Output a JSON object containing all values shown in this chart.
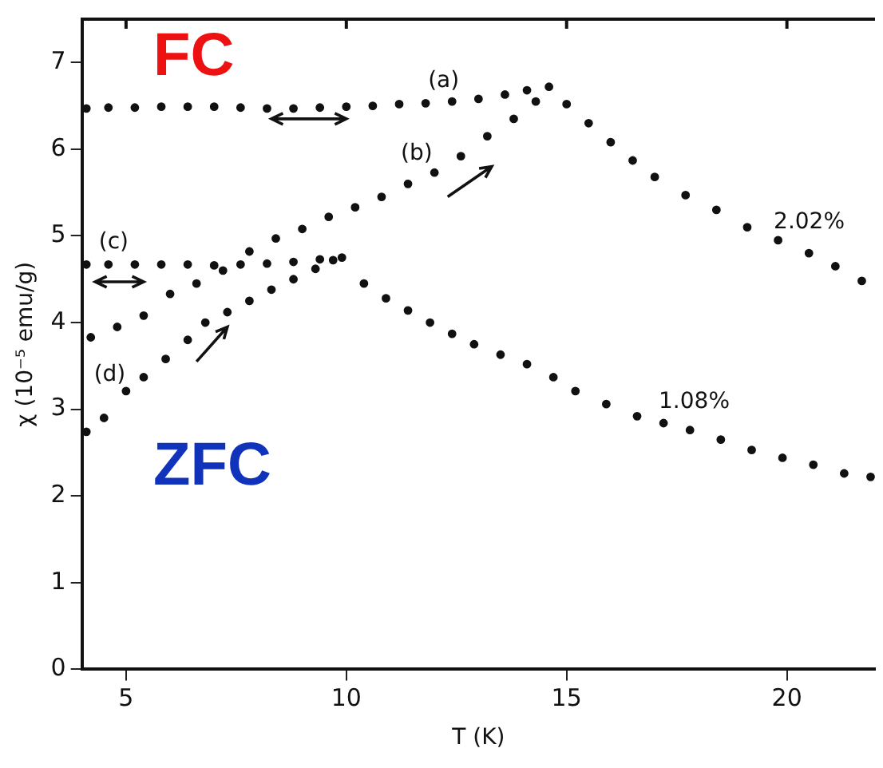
{
  "chart_data": {
    "type": "scatter",
    "xlabel": "T (K)",
    "ylabel": "χ (10⁻⁵ emu/g)",
    "xlim": [
      4,
      22
    ],
    "ylim": [
      0,
      7.5
    ],
    "xticks": [
      5,
      10,
      15,
      20
    ],
    "yticks": [
      0,
      1,
      2,
      3,
      4,
      5,
      6,
      7
    ],
    "grid": false,
    "legend": false,
    "marker": "circle",
    "series": [
      {
        "color": "#111111",
        "x": [
          4.1,
          4.6,
          5.2,
          5.8,
          6.4,
          7.0,
          7.6,
          8.2,
          8.8,
          9.4,
          10.0,
          10.6,
          11.2,
          11.8,
          12.4,
          13.0,
          13.6,
          14.1,
          14.6,
          15.0,
          15.5,
          16.0,
          16.5,
          17.0,
          17.7,
          18.4,
          19.1,
          19.8,
          20.5,
          21.1,
          21.7
        ],
        "values": [
          6.47,
          6.48,
          6.48,
          6.49,
          6.49,
          6.49,
          6.48,
          6.47,
          6.47,
          6.48,
          6.49,
          6.5,
          6.52,
          6.53,
          6.55,
          6.58,
          6.63,
          6.68,
          6.72,
          6.52,
          6.3,
          6.08,
          5.87,
          5.68,
          5.47,
          5.3,
          5.1,
          4.95,
          4.8,
          4.65,
          4.48
        ]
      },
      {
        "color": "#111111",
        "x": [
          4.2,
          4.8,
          5.4,
          6.0,
          6.6,
          7.2,
          7.8,
          8.4,
          9.0,
          9.6,
          10.2,
          10.8,
          11.4,
          12.0,
          12.6,
          13.2,
          13.8,
          14.3
        ],
        "values": [
          3.83,
          3.95,
          4.08,
          4.33,
          4.45,
          4.6,
          4.82,
          4.97,
          5.08,
          5.22,
          5.33,
          5.45,
          5.6,
          5.73,
          5.92,
          6.15,
          6.35,
          6.55
        ]
      },
      {
        "color": "#111111",
        "x": [
          4.1,
          4.6,
          5.2,
          5.8,
          6.4,
          7.0,
          7.6,
          8.2,
          8.8,
          9.4,
          9.9,
          10.4,
          10.9,
          11.4,
          11.9,
          12.4,
          12.9,
          13.5,
          14.1,
          14.7,
          15.2,
          15.9,
          16.6,
          17.2,
          17.8,
          18.5,
          19.2,
          19.9,
          20.6,
          21.3,
          21.9
        ],
        "values": [
          4.67,
          4.67,
          4.67,
          4.67,
          4.67,
          4.66,
          4.67,
          4.68,
          4.7,
          4.73,
          4.75,
          4.45,
          4.28,
          4.14,
          4.0,
          3.87,
          3.75,
          3.63,
          3.52,
          3.37,
          3.21,
          3.06,
          2.92,
          2.84,
          2.76,
          2.65,
          2.53,
          2.44,
          2.36,
          2.26,
          2.22
        ]
      },
      {
        "color": "#111111",
        "x": [
          4.1,
          4.5,
          5.0,
          5.4,
          5.9,
          6.4,
          6.8,
          7.3,
          7.8,
          8.3,
          8.8,
          9.3,
          9.7
        ],
        "values": [
          2.74,
          2.9,
          3.21,
          3.37,
          3.58,
          3.8,
          4.0,
          4.12,
          4.25,
          4.38,
          4.5,
          4.62,
          4.72
        ]
      }
    ],
    "annotations": [
      "FC",
      "ZFC",
      "(a)",
      "(b)",
      "(c)",
      "(d)",
      "2.02%",
      "1.08%"
    ]
  }
}
